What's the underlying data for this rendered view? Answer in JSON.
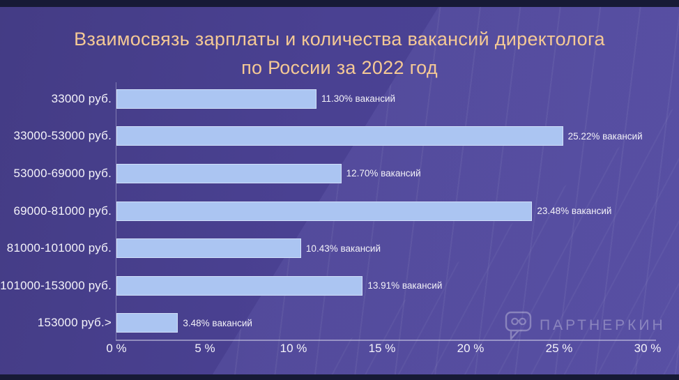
{
  "title": {
    "line1": "Взаимосвязь зарплаты и количества вакансий директолога",
    "line2": "по России за 2022 год"
  },
  "chart_data": {
    "type": "bar",
    "orientation": "horizontal",
    "title": "Взаимосвязь зарплаты и количества вакансий директолога по России за 2022 год",
    "categories": [
      "33000 руб.",
      "33000-53000 руб.",
      "53000-69000 руб.",
      "69000-81000 руб.",
      "81000-101000 руб.",
      "101000-153000 руб.",
      "153000 руб.>"
    ],
    "values": [
      11.3,
      25.22,
      12.7,
      23.48,
      10.43,
      13.91,
      3.48
    ],
    "value_labels": [
      "11.30% вакансий",
      "25.22% вакансий",
      "12.70% вакансий",
      "23.48% вакансий",
      "10.43% вакансий",
      "13.91% вакансий",
      "3.48% вакансий"
    ],
    "unit": "% вакансий",
    "xlim": [
      0,
      30
    ],
    "tick_values": [
      0,
      5,
      10,
      15,
      20,
      25,
      30
    ],
    "tick_labels": [
      "0 %",
      "5 %",
      "10 %",
      "15 %",
      "20 %",
      "25 %",
      "30 %"
    ],
    "grid": false,
    "legend": "none",
    "bar_color": "#abc5f2"
  },
  "watermark": {
    "text": "ПАРТНЕРКИН",
    "logo_icon": "speech-bubble-glasses-icon"
  },
  "colors": {
    "background": "#4a4192",
    "background_strip": "#171a36",
    "title_text": "#f5c995",
    "bar_fill": "#abc5f2",
    "label_text": "#f4f3fa",
    "axis_line": "#dcdcee"
  }
}
